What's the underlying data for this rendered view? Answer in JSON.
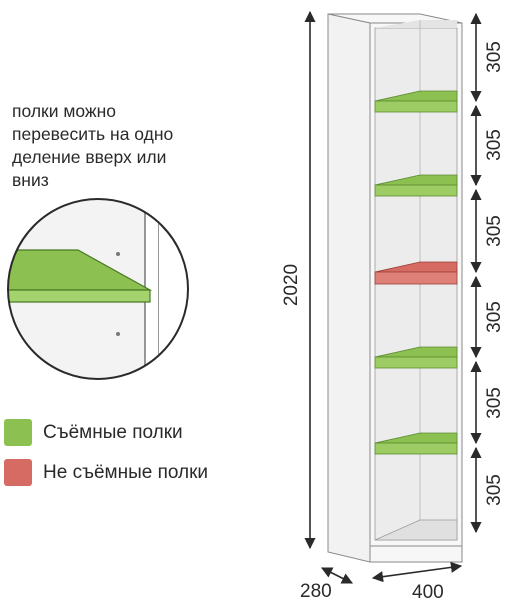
{
  "note": {
    "lines": [
      "полки можно",
      "перевесить на одно",
      "деление вверх или",
      "вниз"
    ]
  },
  "legend": {
    "removable": {
      "label": "Съёмные полки",
      "color": "#8cc152"
    },
    "fixed": {
      "label": "Не съёмные полки",
      "color": "#d56b63"
    }
  },
  "dimensions": {
    "height": "2020",
    "depth": "280",
    "width": "400",
    "sections": [
      "305",
      "305",
      "305",
      "305",
      "305",
      "305"
    ]
  },
  "colors": {
    "cabinet": "#f4f4f4",
    "outline": "#9a9a9a",
    "shelf_green": "#8cc152",
    "shelf_red": "#d56b63"
  }
}
